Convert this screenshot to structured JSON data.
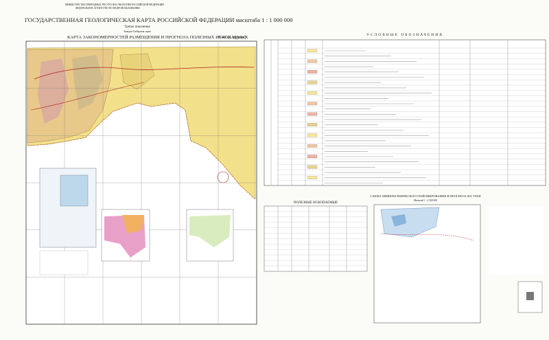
{
  "header": {
    "ministry": "МИНИСТЕРСТВО ПРИРОДНЫХ РЕСУРСОВ И ЭКОЛОГИИ РОССИЙСКОЙ ФЕДЕРАЦИИ",
    "agency": "ФЕДЕРАЛЬНОЕ АГЕНТСТВО ПО НЕДРОПОЛЬЗОВАНИЮ",
    "title": "ГОСУДАРСТВЕННАЯ ГЕОЛОГИЧЕСКАЯ КАРТА РОССИЙСКОЙ ФЕДЕРАЦИИ масштаба 1 : 1 000 000",
    "generation": "Третье поколение",
    "series": "Западно-Сибирская серия"
  },
  "map": {
    "title": "КАРТА ЗАКОНОМЕРНОСТЕЙ РАЗМЕЩЕНИЯ И ПРОГНОЗА ПОЛЕЗНЫХ ИСКОПАЕМЫХ",
    "sheet": "N-41 (г. Курган)"
  },
  "legend": {
    "title": "УСЛОВНЫЕ ОБОЗНАЧЕНИЯ"
  },
  "minerals": {
    "title": "ПОЛЕЗНЫЕ ИСКОПАЕМЫЕ"
  },
  "uranium_scheme": {
    "title": "СХЕМА МИНЕРАГЕНИЧЕСКОГО РАЙОНИРОВАНИЯ И ПРОГНОЗА НА УРАН",
    "scale": "Масштаб 1 : 2 500 000"
  }
}
